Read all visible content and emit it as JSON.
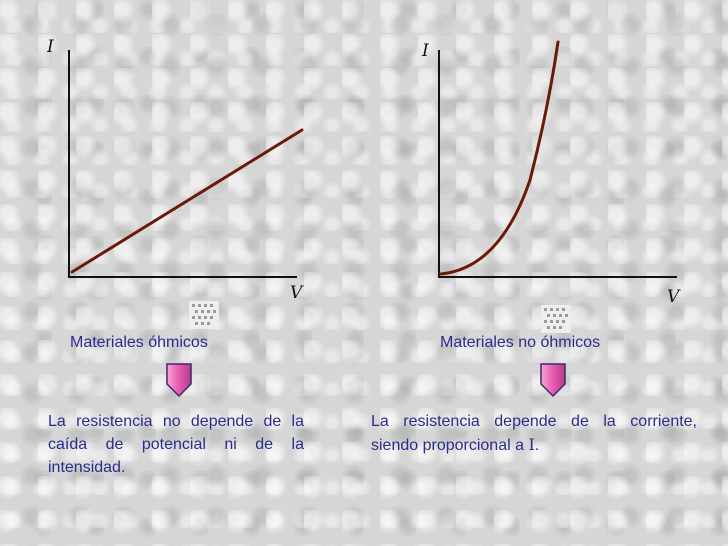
{
  "left_panel": {
    "y_axis_label": "I",
    "x_axis_label": "V",
    "title": "Materiales óhmicos",
    "description": "La resistencia no depende de la caída de potencial ni de la intensidad."
  },
  "right_panel": {
    "y_axis_label": "I",
    "x_axis_label": "V",
    "title": "Materiales no óhmicos",
    "description_prefix": "La resistencia depende de la corriente, siendo proporcional a ",
    "description_symbol": "I",
    "description_suffix": "."
  },
  "colors": {
    "text": "#2c2c8c",
    "curve": "#6b1a08",
    "arrow_fill": "#e85ab0",
    "arrow_outline": "#3b2a6a"
  },
  "icons": {
    "down_arrow": "down-pointing-arrow-icon",
    "decoration": "sparkle-icon"
  }
}
